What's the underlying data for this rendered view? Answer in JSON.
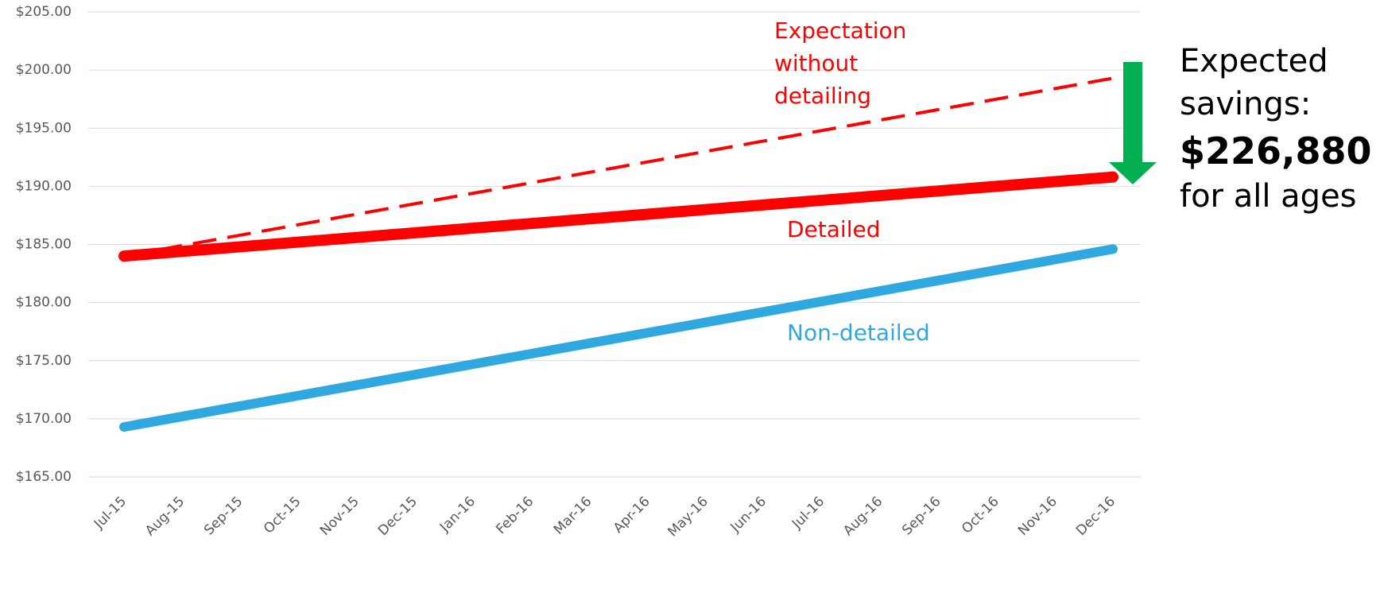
{
  "chart_data": {
    "type": "line",
    "categories": [
      "Jul-15",
      "Aug-15",
      "Sep-15",
      "Oct-15",
      "Nov-15",
      "Dec-15",
      "Jan-16",
      "Feb-16",
      "Mar-16",
      "Apr-16",
      "May-16",
      "Jun-16",
      "Jul-16",
      "Aug-16",
      "Sep-16",
      "Oct-16",
      "Nov-16",
      "Dec-16"
    ],
    "series": [
      {
        "name": "Expectation without detailing",
        "color": "#ff0000",
        "dashed": true,
        "width": 4,
        "values": [
          184.0,
          184.9,
          185.8,
          186.7,
          187.6,
          188.5,
          189.4,
          190.3,
          191.2,
          192.1,
          193.0,
          193.9,
          194.8,
          195.7,
          196.6,
          197.5,
          198.4,
          199.3
        ]
      },
      {
        "name": "Detailed",
        "color": "#ff0000",
        "dashed": false,
        "width": 14,
        "values": [
          184.0,
          184.4,
          184.8,
          185.2,
          185.6,
          186.0,
          186.4,
          186.8,
          187.2,
          187.6,
          188.0,
          188.4,
          188.8,
          189.2,
          189.6,
          190.0,
          190.4,
          190.8
        ]
      },
      {
        "name": "Non-detailed",
        "color": "#2ea8df",
        "dashed": false,
        "width": 12,
        "values": [
          169.3,
          170.2,
          171.1,
          172.0,
          172.9,
          173.8,
          174.7,
          175.6,
          176.5,
          177.4,
          178.3,
          179.2,
          180.1,
          181.0,
          181.9,
          182.8,
          183.7,
          184.6
        ]
      }
    ],
    "ylim": [
      165,
      205
    ],
    "yticks": [
      {
        "value": 165,
        "label": "$165.00"
      },
      {
        "value": 170,
        "label": "$170.00"
      },
      {
        "value": 175,
        "label": "$175.00"
      },
      {
        "value": 180,
        "label": "$180.00"
      },
      {
        "value": 185,
        "label": "$185.00"
      },
      {
        "value": 190,
        "label": "$190.00"
      },
      {
        "value": 195,
        "label": "$195.00"
      },
      {
        "value": 200,
        "label": "$200.00"
      },
      {
        "value": 205,
        "label": "$205.00"
      }
    ],
    "grid": true,
    "annotations": [
      "Expected savings:",
      "$226,880",
      "for all ages"
    ]
  }
}
